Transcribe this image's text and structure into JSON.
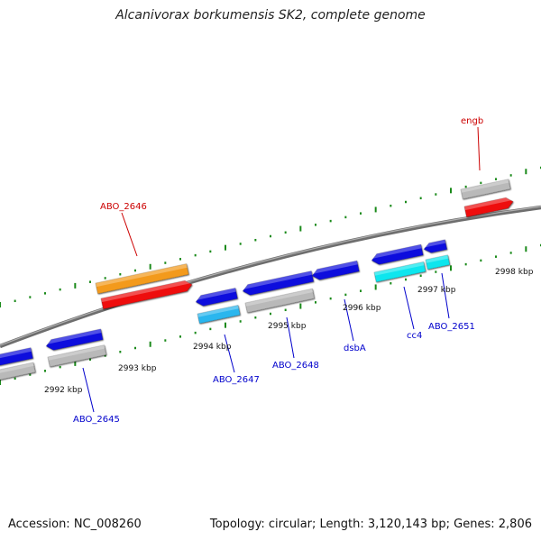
{
  "title": "Alcanivorax borkumensis SK2, complete genome",
  "footer": {
    "accession": "Accession: NC_008260",
    "summary": "Topology: circular; Length: 3,120,143 bp; Genes: 2,806"
  },
  "colors": {
    "backbone": "#808080",
    "tick_marks": "#1a8a1a",
    "blue_gene": "#0b0bdd",
    "gray_gene": "#b9b9b9",
    "orange_gene": "#f39a1a",
    "red_gene": "#ee1111",
    "cyan_gene": "#11e6ee",
    "label_blue": "#0000cc",
    "label_red": "#cc0000"
  },
  "scale_labels": [
    "2992 kbp",
    "2993 kbp",
    "2994 kbp",
    "2995 kbp",
    "2996 kbp",
    "2997 kbp",
    "2998 kbp"
  ],
  "gene_labels": [
    {
      "text": "ABO_2646",
      "color": "red"
    },
    {
      "text": "engb",
      "color": "red"
    },
    {
      "text": "ABO_2645",
      "color": "blue"
    },
    {
      "text": "ABO_2647",
      "color": "blue"
    },
    {
      "text": "ABO_2648",
      "color": "blue"
    },
    {
      "text": "dsbA",
      "color": "blue"
    },
    {
      "text": "cc4",
      "color": "blue"
    },
    {
      "text": "ABO_2651",
      "color": "blue"
    }
  ]
}
